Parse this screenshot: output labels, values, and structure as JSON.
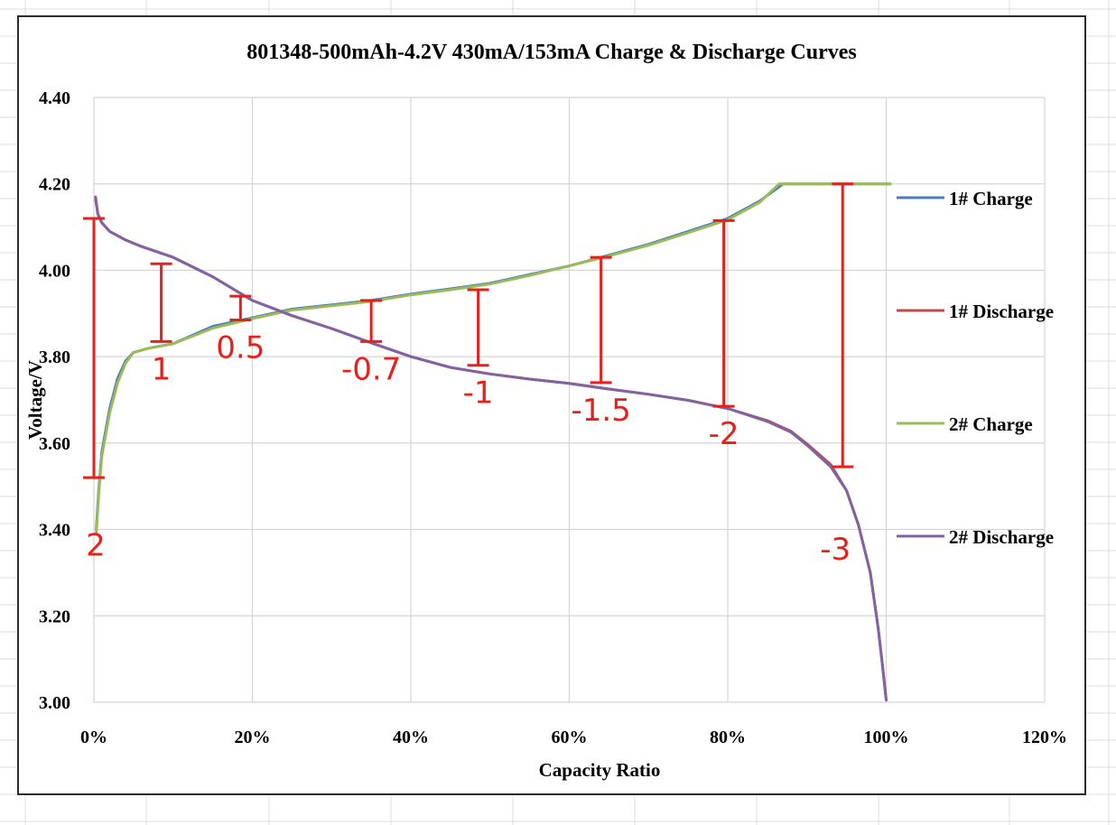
{
  "chart_data": {
    "type": "line",
    "title": "801348-500mAh-4.2V  430mA/153mA  Charge & Discharge Curves",
    "xlabel": "Capacity Ratio",
    "ylabel": "Voltage/V",
    "xlim": [
      0,
      1.2
    ],
    "ylim": [
      3.0,
      4.4
    ],
    "x_ticks": [
      0,
      0.2,
      0.4,
      0.6,
      0.8,
      1.0,
      1.2
    ],
    "x_tick_labels": [
      "0%",
      "20%",
      "40%",
      "60%",
      "80%",
      "100%",
      "120%"
    ],
    "y_ticks": [
      3.0,
      3.2,
      3.4,
      3.6,
      3.8,
      4.0,
      4.2,
      4.4
    ],
    "y_tick_labels": [
      "3.00",
      "3.20",
      "3.40",
      "3.60",
      "3.80",
      "4.00",
      "4.20",
      "4.40"
    ],
    "grid": true,
    "legend_position": "right",
    "series": [
      {
        "name": "1# Charge",
        "color": "#4a7ebb",
        "x": [
          0.003,
          0.006,
          0.01,
          0.02,
          0.03,
          0.04,
          0.05,
          0.07,
          0.1,
          0.15,
          0.2,
          0.25,
          0.3,
          0.35,
          0.4,
          0.45,
          0.5,
          0.55,
          0.6,
          0.65,
          0.7,
          0.75,
          0.8,
          0.84,
          0.87,
          0.9,
          0.95,
          1.0,
          1.005
        ],
        "y": [
          3.4,
          3.49,
          3.58,
          3.68,
          3.75,
          3.79,
          3.81,
          3.82,
          3.83,
          3.87,
          3.89,
          3.91,
          3.92,
          3.93,
          3.945,
          3.957,
          3.97,
          3.99,
          4.01,
          4.035,
          4.06,
          4.09,
          4.12,
          4.16,
          4.2,
          4.2,
          4.2,
          4.2,
          4.2
        ]
      },
      {
        "name": "1# Discharge",
        "color": "#be4b48",
        "x": [
          0.002,
          0.005,
          0.01,
          0.02,
          0.04,
          0.06,
          0.1,
          0.15,
          0.2,
          0.25,
          0.3,
          0.35,
          0.4,
          0.45,
          0.5,
          0.55,
          0.6,
          0.65,
          0.7,
          0.75,
          0.8,
          0.85,
          0.88,
          0.9,
          0.93,
          0.95,
          0.965,
          0.98,
          0.99,
          0.995,
          1.0
        ],
        "y": [
          4.165,
          4.13,
          4.11,
          4.09,
          4.07,
          4.055,
          4.03,
          3.985,
          3.93,
          3.895,
          3.865,
          3.832,
          3.8,
          3.775,
          3.76,
          3.748,
          3.738,
          3.725,
          3.713,
          3.699,
          3.68,
          3.652,
          3.627,
          3.598,
          3.55,
          3.49,
          3.41,
          3.3,
          3.17,
          3.09,
          3.005
        ]
      },
      {
        "name": "2# Charge",
        "color": "#9bbb59",
        "x": [
          0.003,
          0.006,
          0.01,
          0.02,
          0.03,
          0.04,
          0.05,
          0.07,
          0.1,
          0.15,
          0.2,
          0.25,
          0.3,
          0.35,
          0.4,
          0.45,
          0.5,
          0.55,
          0.6,
          0.65,
          0.7,
          0.75,
          0.8,
          0.84,
          0.865,
          0.9,
          0.95,
          1.0,
          1.005
        ],
        "y": [
          3.39,
          3.48,
          3.57,
          3.67,
          3.74,
          3.785,
          3.81,
          3.82,
          3.83,
          3.866,
          3.888,
          3.908,
          3.918,
          3.928,
          3.943,
          3.955,
          3.968,
          3.988,
          4.01,
          4.033,
          4.058,
          4.087,
          4.117,
          4.157,
          4.2,
          4.2,
          4.2,
          4.2,
          4.2
        ]
      },
      {
        "name": "2# Discharge",
        "color": "#8064a2",
        "x": [
          0.002,
          0.005,
          0.01,
          0.02,
          0.04,
          0.06,
          0.1,
          0.15,
          0.2,
          0.25,
          0.3,
          0.35,
          0.4,
          0.45,
          0.5,
          0.55,
          0.6,
          0.65,
          0.7,
          0.75,
          0.8,
          0.85,
          0.88,
          0.9,
          0.93,
          0.95,
          0.965,
          0.98,
          0.99,
          0.995,
          1.0
        ],
        "y": [
          4.17,
          4.13,
          4.11,
          4.09,
          4.07,
          4.055,
          4.03,
          3.985,
          3.93,
          3.895,
          3.865,
          3.832,
          3.8,
          3.775,
          3.76,
          3.748,
          3.738,
          3.725,
          3.713,
          3.699,
          3.68,
          3.65,
          3.625,
          3.595,
          3.545,
          3.49,
          3.41,
          3.3,
          3.17,
          3.09,
          3.005
        ]
      }
    ],
    "annotations": [
      {
        "label": "2",
        "x": 0.0,
        "y_top": 4.12,
        "y_bottom": 3.52
      },
      {
        "label": "1",
        "x": 0.085,
        "y_top": 4.015,
        "y_bottom": 3.835
      },
      {
        "label": "0.5",
        "x": 0.185,
        "y_top": 3.94,
        "y_bottom": 3.885
      },
      {
        "label": "-0.7",
        "x": 0.35,
        "y_top": 3.93,
        "y_bottom": 3.835
      },
      {
        "label": "-1",
        "x": 0.485,
        "y_top": 3.955,
        "y_bottom": 3.78
      },
      {
        "label": "-1.5",
        "x": 0.64,
        "y_top": 4.03,
        "y_bottom": 3.74
      },
      {
        "label": "-2",
        "x": 0.795,
        "y_top": 4.115,
        "y_bottom": 3.685
      },
      {
        "label": "-3",
        "x": 0.945,
        "y_top": 4.2,
        "y_bottom": 3.545
      }
    ]
  }
}
